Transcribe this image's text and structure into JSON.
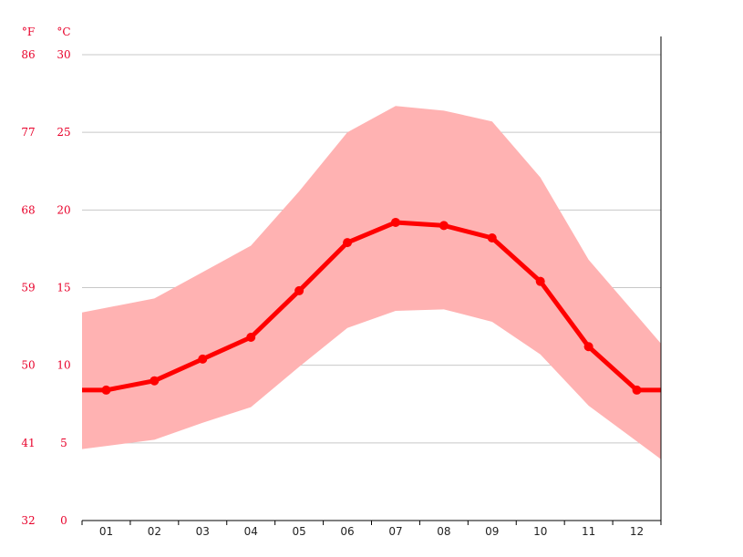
{
  "chart_data": {
    "type": "line",
    "title": "",
    "xlabel": "",
    "ylabel": "",
    "units": {
      "left": "°F",
      "right": "°C"
    },
    "categories": [
      "01",
      "02",
      "03",
      "04",
      "05",
      "06",
      "07",
      "08",
      "09",
      "10",
      "11",
      "12"
    ],
    "ylim": [
      0,
      30
    ],
    "y_ticks_c": [
      0,
      5,
      10,
      15,
      20,
      25,
      30
    ],
    "y_ticks_f": [
      32,
      41,
      50,
      59,
      68,
      77,
      86
    ],
    "grid": true,
    "series": [
      {
        "key": "mean",
        "values": [
          8.4,
          9.0,
          10.4,
          11.8,
          14.8,
          17.9,
          19.2,
          19.0,
          18.2,
          15.4,
          11.2,
          8.4
        ]
      },
      {
        "key": "max",
        "values": [
          13.7,
          14.3,
          16.0,
          17.7,
          21.2,
          25.0,
          26.7,
          26.4,
          25.7,
          22.1,
          16.8,
          13.2
        ]
      },
      {
        "key": "min",
        "values": [
          4.8,
          5.2,
          6.3,
          7.3,
          9.9,
          12.4,
          13.5,
          13.6,
          12.8,
          10.7,
          7.4,
          5.1
        ]
      }
    ],
    "colors": {
      "mean_line": "#ff0000",
      "range_fill": "#ffb2b2",
      "axis_text": "#e8002a",
      "grid": "#c8c8c8"
    }
  }
}
